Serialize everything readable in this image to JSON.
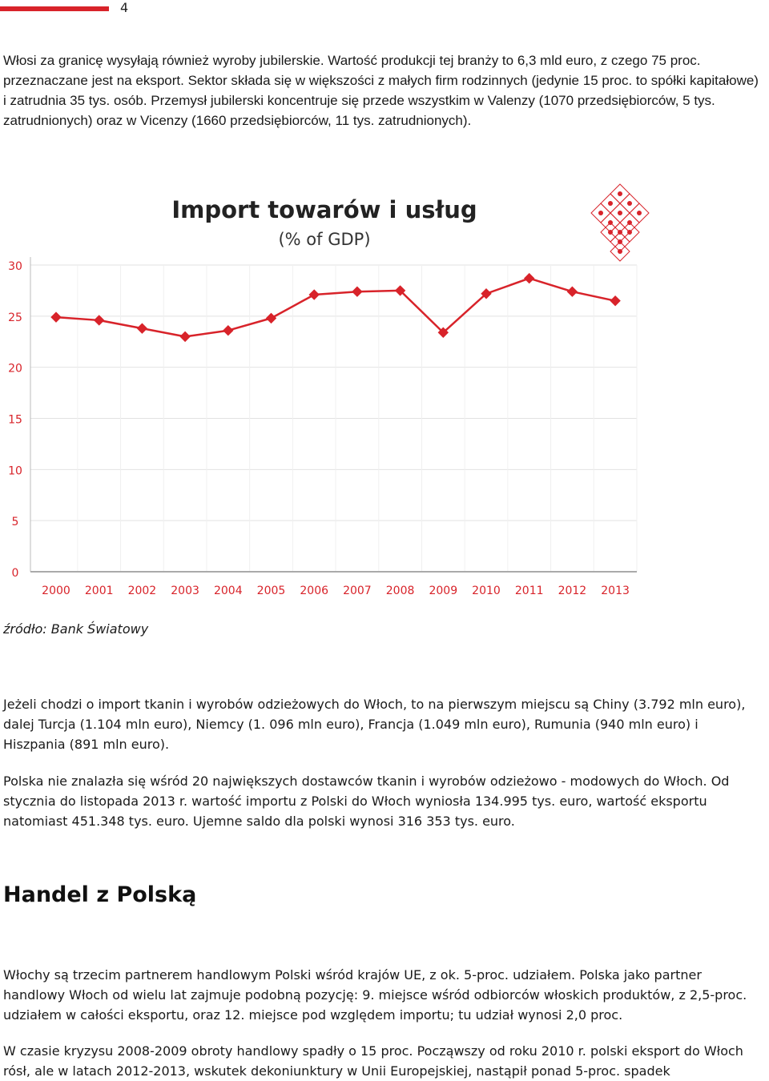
{
  "header": {
    "page_number": "4",
    "accent_color": "#d8232a"
  },
  "paragraphs": {
    "intro": "Włosi za granicę wysyłają również wyroby jubilerskie. Wartość produkcji tej branży to 6,3 mld euro, z czego 75 proc. przeznaczane jest na eksport. Sektor składa się w większości z małych firm rodzinnych (jedynie 15 proc. to spółki kapitałowe) i zatrudnia 35 tys. osób. Przemysł jubilerski koncentruje się przede wszystkim w Valenzy (1070 przedsiębiorców, 5 tys. zatrudnionych) oraz w Vicenzy (1660 przedsiębiorców, 11 tys. zatrudnionych).",
    "source": "źródło: Bank Światowy",
    "textiles": "Jeżeli chodzi o import tkanin i wyrobów odzieżowych do Włoch, to na pierwszym miejscu są Chiny (3.792 mln euro), dalej Turcja (1.104 mln euro), Niemcy (1. 096 mln euro), Francja (1.049 mln euro), Rumunia (940 mln euro) i Hiszpania (891 mln euro).",
    "poland_textiles": "Polska nie znalazła się wśród 20 największych dostawców tkanin i wyrobów odzieżowo - modowych do Włoch. Od stycznia do listopada 2013 r. wartość importu z Polski do Włoch wyniosła 134.995 tys. euro, wartość eksportu natomiast 451.348 tys. euro. Ujemne saldo dla polski wynosi 316 353 tys. euro.",
    "heading": "Handel z Polską",
    "trade_partner": "Włochy są trzecim partnerem handlowym Polski wśród krajów UE, z ok. 5-proc. udziałem. Polska jako partner handlowy Włoch od wielu lat zajmuje podobną pozycję: 9. miejsce wśród odbiorców włoskich produktów, z 2,5-proc. udziałem w całości eksportu, oraz 12. miejsce pod względem importu; tu udział wynosi 2,0 proc.",
    "crisis": "W czasie kryzysu 2008-2009 obroty handlowy spadły o 15 proc. Począwszy od roku 2010 r. polski eksport do Włoch rósł, ale w latach 2012-2013, wskutek dekoniunktury w Unii Europejskiej, nastąpił ponad 5-proc. spadek"
  },
  "chart_data": {
    "type": "line",
    "title": "Import towarów i usług",
    "subtitle": "(% of GDP)",
    "x": [
      "2000",
      "2001",
      "2002",
      "2003",
      "2004",
      "2005",
      "2006",
      "2007",
      "2008",
      "2009",
      "2010",
      "2011",
      "2012",
      "2013"
    ],
    "values": [
      24.9,
      24.6,
      23.8,
      23.0,
      23.6,
      24.8,
      27.1,
      27.4,
      27.5,
      23.4,
      27.2,
      28.7,
      27.4,
      26.5
    ],
    "ylim": [
      0,
      30
    ],
    "yticks": [
      "0",
      "5",
      "10",
      "15",
      "20",
      "25",
      "30"
    ],
    "grid": true,
    "line_color": "#d8232a",
    "axis_label_color": "#d8232a",
    "logo": "red-diamond-lattice-logo"
  }
}
